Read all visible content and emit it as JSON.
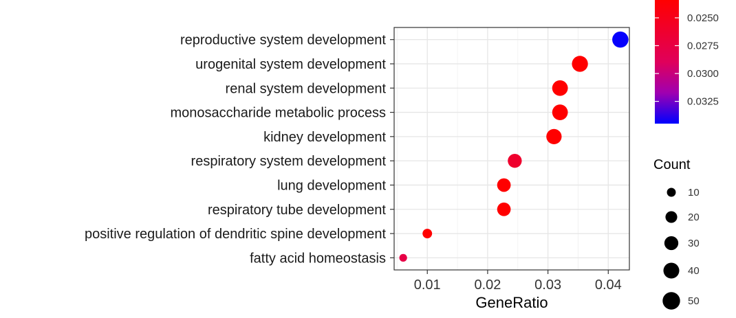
{
  "chart_data": {
    "type": "scatter",
    "title": "",
    "xlabel": "GeneRatio",
    "ylabel": "",
    "xlim": [
      0.0045,
      0.0435
    ],
    "x_ticks": [
      0.01,
      0.02,
      0.03,
      0.04
    ],
    "x_tick_labels": [
      "0.01",
      "0.02",
      "0.03",
      "0.04"
    ],
    "grid": true,
    "categories": [
      "reproductive system development",
      "urogenital system development",
      "renal system development",
      "monosaccharide metabolic process",
      "kidney development",
      "respiratory system development",
      "lung development",
      "respiratory tube development",
      "positive regulation of dendritic spine development",
      "fatty acid homeostasis"
    ],
    "points": [
      {
        "category": "reproductive system development",
        "x": 0.042,
        "count": 42,
        "p_adjust": 0.0344
      },
      {
        "category": "urogenital system development",
        "x": 0.0353,
        "count": 41,
        "p_adjust": 0.0234
      },
      {
        "category": "renal system development",
        "x": 0.032,
        "count": 39,
        "p_adjust": 0.0234
      },
      {
        "category": "monosaccharide metabolic process",
        "x": 0.032,
        "count": 39,
        "p_adjust": 0.0234
      },
      {
        "category": "kidney development",
        "x": 0.031,
        "count": 37,
        "p_adjust": 0.0234
      },
      {
        "category": "respiratory system development",
        "x": 0.0245,
        "count": 30,
        "p_adjust": 0.0262
      },
      {
        "category": "lung development",
        "x": 0.0227,
        "count": 28,
        "p_adjust": 0.0234
      },
      {
        "category": "respiratory tube development",
        "x": 0.0227,
        "count": 28,
        "p_adjust": 0.0234
      },
      {
        "category": "positive regulation of dendritic spine development",
        "x": 0.01,
        "count": 12,
        "p_adjust": 0.0234
      },
      {
        "category": "fatty acid homeostasis",
        "x": 0.006,
        "count": 7,
        "p_adjust": 0.0277
      }
    ],
    "color_legend": {
      "title": "",
      "ticks": [
        0.025,
        0.0275,
        0.03,
        0.0325
      ],
      "tick_labels": [
        "0.0250",
        "0.0275",
        "0.0300",
        "0.0325"
      ],
      "range": [
        0.0234,
        0.0345
      ],
      "low_color": "#ff0000",
      "high_color": "#0000ff"
    },
    "size_legend": {
      "title": "Count",
      "values": [
        10,
        20,
        30,
        40,
        50
      ],
      "labels": [
        "10",
        "20",
        "30",
        "40",
        "50"
      ],
      "color": "#000000"
    }
  }
}
